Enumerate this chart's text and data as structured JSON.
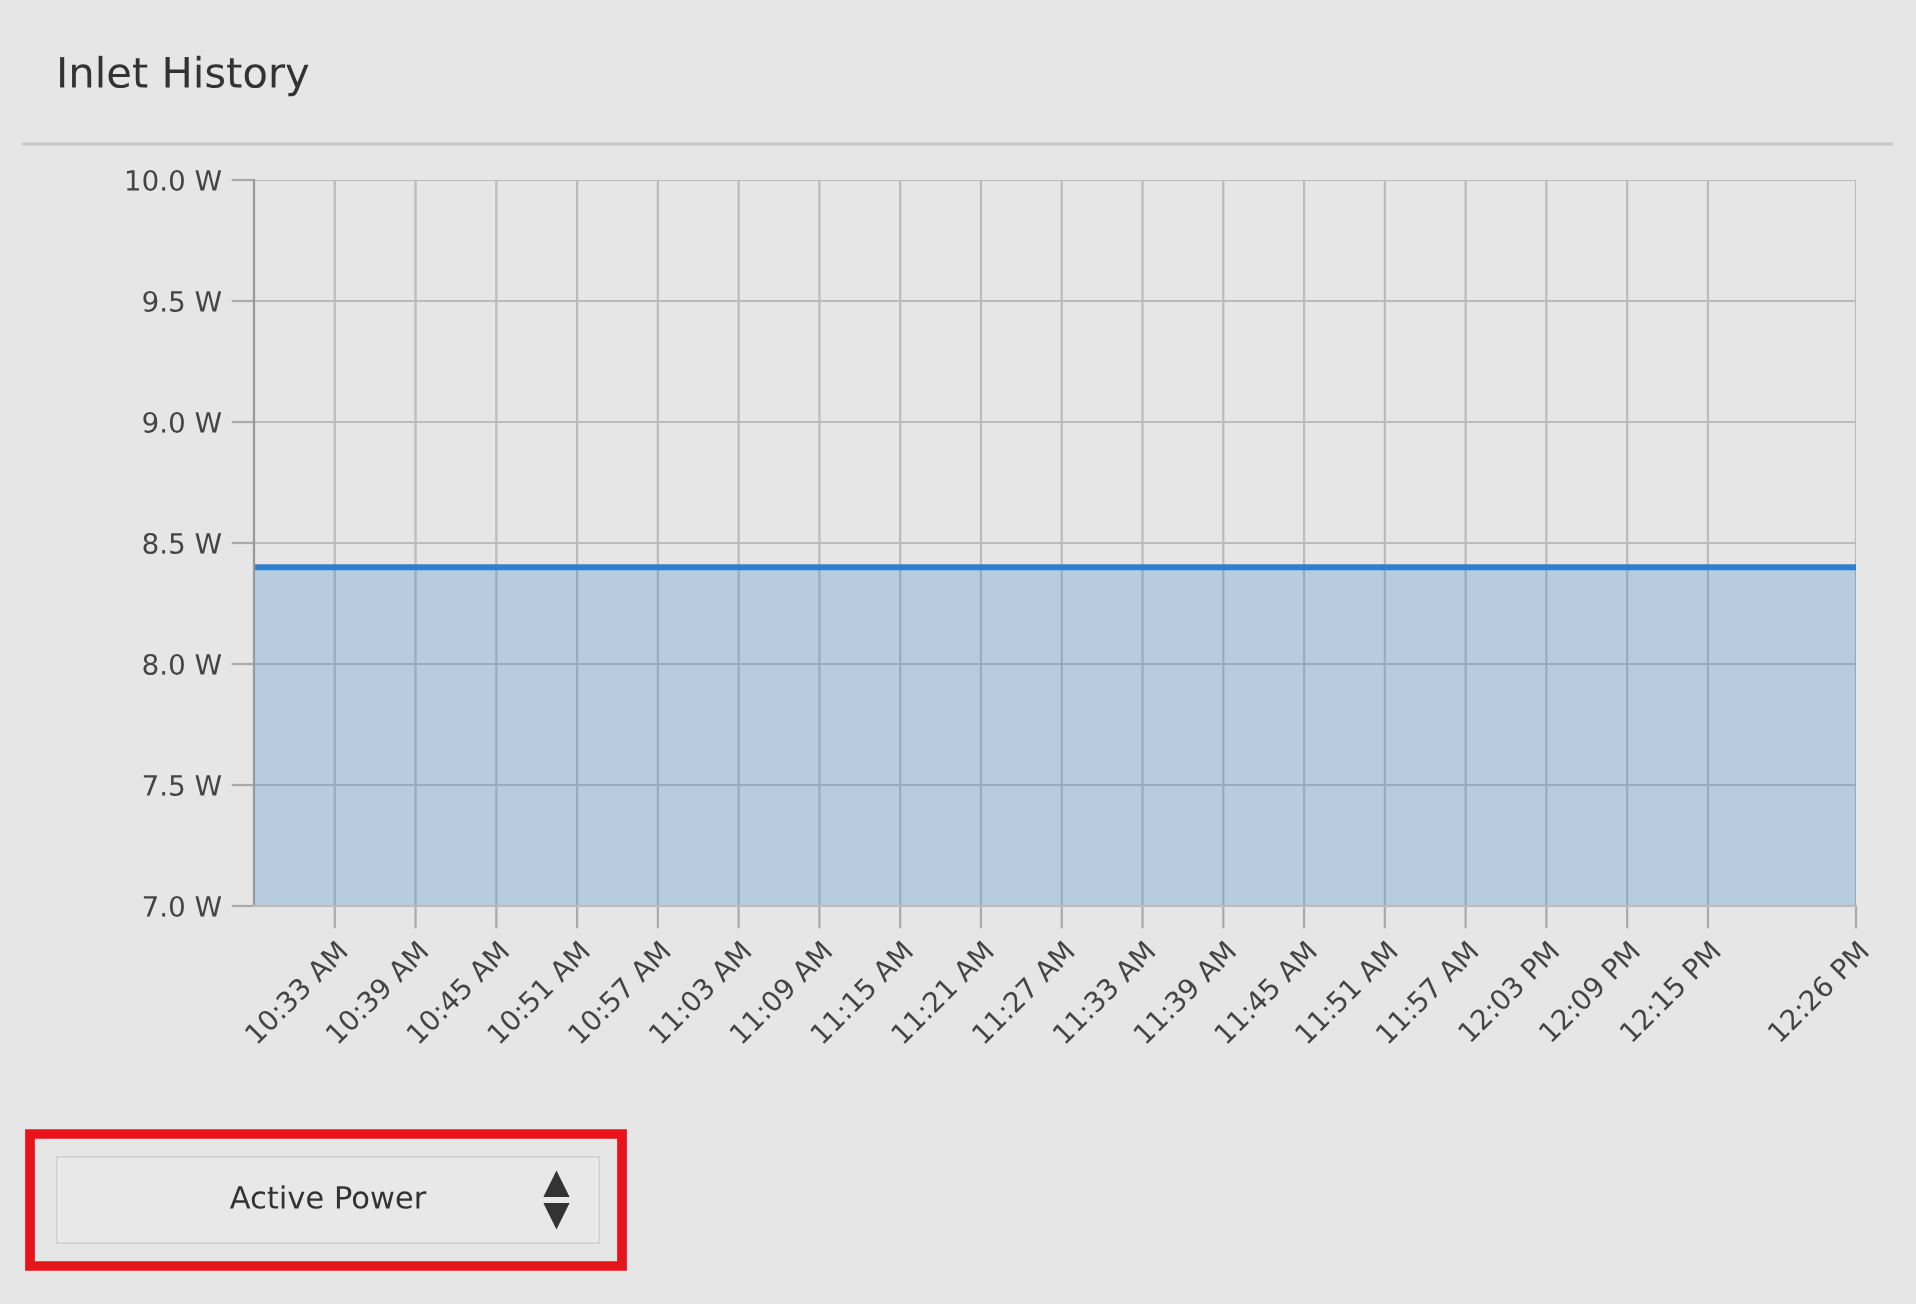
{
  "chart_data": {
    "type": "area",
    "title": "Inlet History",
    "x": [
      10.45,
      12.4333
    ],
    "series": [
      {
        "color": "#2f7fd0",
        "values": [
          8.4,
          8.4
        ]
      }
    ],
    "xlim": [
      10.45,
      12.4333
    ],
    "xticks": [
      {
        "value": 10.55,
        "label": "10:33 AM"
      },
      {
        "value": 10.65,
        "label": "10:39 AM"
      },
      {
        "value": 10.75,
        "label": "10:45 AM"
      },
      {
        "value": 10.85,
        "label": "10:51 AM"
      },
      {
        "value": 10.95,
        "label": "10:57 AM"
      },
      {
        "value": 11.05,
        "label": "11:03 AM"
      },
      {
        "value": 11.15,
        "label": "11:09 AM"
      },
      {
        "value": 11.25,
        "label": "11:15 AM"
      },
      {
        "value": 11.35,
        "label": "11:21 AM"
      },
      {
        "value": 11.45,
        "label": "11:27 AM"
      },
      {
        "value": 11.55,
        "label": "11:33 AM"
      },
      {
        "value": 11.65,
        "label": "11:39 AM"
      },
      {
        "value": 11.75,
        "label": "11:45 AM"
      },
      {
        "value": 11.85,
        "label": "11:51 AM"
      },
      {
        "value": 11.95,
        "label": "11:57 AM"
      },
      {
        "value": 12.05,
        "label": "12:03 PM"
      },
      {
        "value": 12.15,
        "label": "12:09 PM"
      },
      {
        "value": 12.25,
        "label": "12:15 PM"
      },
      {
        "value": 12.4333,
        "label": "12:26 PM"
      }
    ],
    "ylim": [
      7.0,
      10.0
    ],
    "yticks": [
      {
        "value": 7.0,
        "label": "7.0 W"
      },
      {
        "value": 7.5,
        "label": "7.5 W"
      },
      {
        "value": 8.0,
        "label": "8.0 W"
      },
      {
        "value": 8.5,
        "label": "8.5 W"
      },
      {
        "value": 9.0,
        "label": "9.0 W"
      },
      {
        "value": 9.5,
        "label": "9.5 W"
      },
      {
        "value": 10.0,
        "label": "10.0 W"
      }
    ],
    "grid": true,
    "annotations": [
      "Active Power"
    ]
  }
}
